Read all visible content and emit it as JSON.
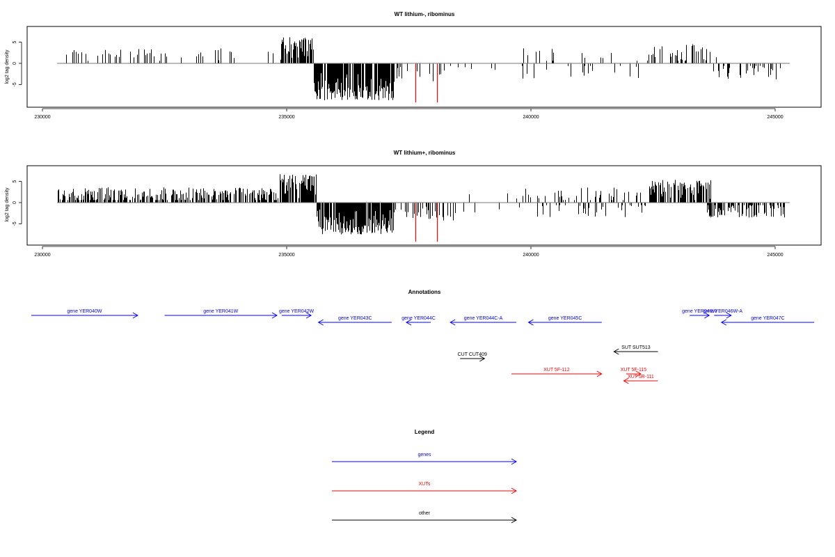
{
  "chart_data": [
    {
      "type": "bar",
      "title": "WT lithium-, ribominus",
      "ylabel": "log2 tag density",
      "xlabel": "",
      "xlim": [
        229500,
        245800
      ],
      "ylim": [
        -9.5,
        9
      ],
      "x_ticks": [
        230000,
        235000,
        240000,
        245000
      ],
      "y_ticks": [
        5,
        0,
        -5
      ],
      "baseline": {
        "x0": 230300,
        "x1": 245300
      },
      "segments": [
        {
          "x0": 230300,
          "x1": 234900,
          "count": 55,
          "mean": 2.0,
          "spread": 1.6,
          "sign": 1,
          "prob": 0.95
        },
        {
          "x0": 234870,
          "x1": 235550,
          "count": 70,
          "mean": 3.4,
          "spread": 2.8,
          "sign": 1,
          "prob": 1.0
        },
        {
          "x0": 235550,
          "x1": 237200,
          "count": 230,
          "mean": 5.5,
          "spread": 3.2,
          "sign": -1,
          "prob": 1.0
        },
        {
          "x0": 237200,
          "x1": 238300,
          "count": 14,
          "mean": 2.5,
          "spread": 2.0,
          "sign": -1,
          "prob": 1.0
        },
        {
          "x0": 238300,
          "x1": 239800,
          "count": 6,
          "mean": 1.5,
          "spread": 1.0,
          "sign": -1,
          "prob": 1.0
        },
        {
          "x0": 239800,
          "x1": 242400,
          "count": 55,
          "mean": 1.8,
          "spread": 1.8,
          "sign": 0,
          "prob": 0.6
        },
        {
          "x0": 242400,
          "x1": 243800,
          "count": 40,
          "mean": 2.5,
          "spread": 2.0,
          "sign": 1,
          "prob": 0.9
        },
        {
          "x0": 243700,
          "x1": 245200,
          "count": 40,
          "mean": 2.0,
          "spread": 1.8,
          "sign": -1,
          "prob": 0.9
        }
      ],
      "red_bars": [
        {
          "x": 237630,
          "y": -9.2
        },
        {
          "x": 238080,
          "y": -9.2
        }
      ],
      "seed": 11
    },
    {
      "type": "bar",
      "title": "WT lithium+, ribominus",
      "ylabel": "log2 tag density",
      "xlabel": "",
      "xlim": [
        229500,
        245800
      ],
      "ylim": [
        -9.5,
        9
      ],
      "x_ticks": [
        230000,
        235000,
        240000,
        245000
      ],
      "y_ticks": [
        5,
        0,
        -5
      ],
      "baseline": {
        "x0": 230300,
        "x1": 245300
      },
      "segments": [
        {
          "x0": 230300,
          "x1": 234850,
          "count": 330,
          "mean": 1.6,
          "spread": 2.0,
          "sign": 1,
          "prob": 0.95
        },
        {
          "x0": 234850,
          "x1": 235600,
          "count": 110,
          "mean": 3.6,
          "spread": 3.2,
          "sign": 1,
          "prob": 1.0
        },
        {
          "x0": 235600,
          "x1": 237200,
          "count": 240,
          "mean": 4.5,
          "spread": 3.0,
          "sign": -1,
          "prob": 0.9
        },
        {
          "x0": 237200,
          "x1": 238400,
          "count": 30,
          "mean": 2.5,
          "spread": 2.0,
          "sign": -1,
          "prob": 1.0
        },
        {
          "x0": 238400,
          "x1": 239800,
          "count": 15,
          "mean": 1.5,
          "spread": 1.2,
          "sign": 0,
          "prob": 0.5
        },
        {
          "x0": 239800,
          "x1": 242400,
          "count": 160,
          "mean": 1.6,
          "spread": 2.0,
          "sign": 0,
          "prob": 0.5
        },
        {
          "x0": 242400,
          "x1": 243700,
          "count": 120,
          "mean": 2.8,
          "spread": 2.6,
          "sign": 1,
          "prob": 0.95
        },
        {
          "x0": 243600,
          "x1": 245200,
          "count": 130,
          "mean": 1.8,
          "spread": 1.8,
          "sign": -1,
          "prob": 0.85
        }
      ],
      "red_bars": [
        {
          "x": 237630,
          "y": -9.2
        },
        {
          "x": 238080,
          "y": -9.2
        }
      ],
      "seed": 29
    }
  ],
  "annotations": {
    "title": "Annotations",
    "colors": {
      "genes": "#0000ff",
      "XUTs": "#ff0000",
      "other": "#000000"
    },
    "xlim": [
      229500,
      245800
    ],
    "items": [
      {
        "label": "gene YER040W",
        "kind": "genes",
        "x0": 229700,
        "x1": 231950,
        "dir": "right",
        "row": 0
      },
      {
        "label": "gene YER041W",
        "kind": "genes",
        "x0": 232500,
        "x1": 234800,
        "dir": "right",
        "row": 0
      },
      {
        "label": "gene YER042W",
        "kind": "genes",
        "x0": 234900,
        "x1": 235500,
        "dir": "right",
        "row": 0
      },
      {
        "label": "gene YER043C",
        "kind": "genes",
        "x0": 235650,
        "x1": 237150,
        "dir": "left",
        "row": 1
      },
      {
        "label": "gene YER044C",
        "kind": "genes",
        "x0": 237450,
        "x1": 237950,
        "dir": "left",
        "row": 1
      },
      {
        "label": "gene YER044C-A",
        "kind": "genes",
        "x0": 238350,
        "x1": 239700,
        "dir": "left",
        "row": 1
      },
      {
        "label": "gene YER045C",
        "kind": "genes",
        "x0": 239950,
        "x1": 241450,
        "dir": "left",
        "row": 1
      },
      {
        "label": "gene YER046W",
        "kind": "genes",
        "x0": 243250,
        "x1": 243650,
        "dir": "right",
        "row": 0
      },
      {
        "label": "gene YER046W-A",
        "kind": "genes",
        "x0": 243750,
        "x1": 244100,
        "dir": "right",
        "row": 0
      },
      {
        "label": "gene YER047C",
        "kind": "genes",
        "x0": 243900,
        "x1": 245800,
        "dir": "left",
        "row": 1
      },
      {
        "label": "SUT SUT513",
        "kind": "other",
        "x0": 241700,
        "x1": 242600,
        "dir": "left",
        "row": 3
      },
      {
        "label": "CUT CUT409",
        "kind": "other",
        "x0": 238550,
        "x1": 239050,
        "dir": "right",
        "row": 4
      },
      {
        "label": "XUT 5F-112",
        "kind": "XUTs",
        "x0": 239600,
        "x1": 241450,
        "dir": "right",
        "row": 6
      },
      {
        "label": "XUT 5F-115",
        "kind": "XUTs",
        "x0": 241950,
        "x1": 242250,
        "dir": "right",
        "row": 6
      },
      {
        "label": "XUT 5R-111",
        "kind": "XUTs",
        "x0": 241900,
        "x1": 242600,
        "dir": "left",
        "row": 7
      }
    ]
  },
  "legend": {
    "title": "Legend",
    "entries": [
      {
        "label": "genes",
        "color": "#0000ff"
      },
      {
        "label": "XUTs",
        "color": "#ff0000"
      },
      {
        "label": "other",
        "color": "#000000"
      }
    ]
  }
}
